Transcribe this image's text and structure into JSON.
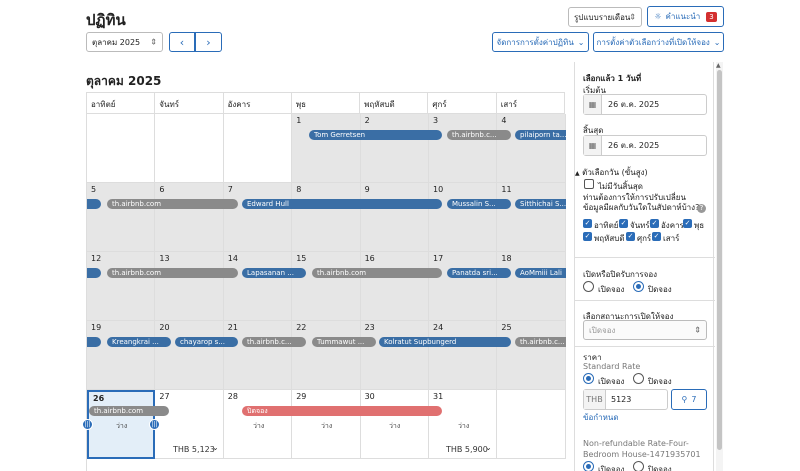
{
  "page_title": "ปฏิทิน",
  "header": {
    "view_select": "รูปแบบรายเดือน",
    "tips_label": "คำแนะนำ",
    "tips_count": "3",
    "month_select": "ตุลาคม 2025",
    "prev": "‹",
    "next": "›",
    "manage_settings": "จัดการการตั้งค่าปฏิทิน",
    "availability_settings": "การตั้งค่าตัวเลือกว่างที่เปิดให้จอง"
  },
  "calendar": {
    "month_title": "ตุลาคม 2025",
    "weekdays": [
      "อาทิตย์",
      "จันทร์",
      "อังคาร",
      "พุธ",
      "พฤหัสบดี",
      "ศุกร์",
      "เสาร์"
    ],
    "weeks": [
      {
        "days": [
          "",
          "",
          "",
          "1",
          "2",
          "3",
          "4"
        ]
      },
      {
        "days": [
          "5",
          "6",
          "7",
          "8",
          "9",
          "10",
          "11"
        ]
      },
      {
        "days": [
          "12",
          "13",
          "14",
          "15",
          "16",
          "17",
          "18"
        ]
      },
      {
        "days": [
          "19",
          "20",
          "21",
          "22",
          "23",
          "24",
          "25"
        ]
      },
      {
        "days": [
          "26",
          "27",
          "28",
          "29",
          "30",
          "31",
          ""
        ]
      }
    ],
    "reservations": {
      "tom": "Tom Gerretsen",
      "airbnb_w1": "th.airbnb.c...",
      "pilai": "pilaiporn ta...",
      "airbnb_w2": "th.airbnb.com",
      "edward": "Edward Hull",
      "mussalin": "Mussalin S...",
      "sitthichai": "Sitthichai S...",
      "airbnb_w3a": "th.airbnb.com",
      "lapasanan": "Lapasanan ...",
      "airbnb_w3b": "th.airbnb.com",
      "panatda": "Panatda sri...",
      "aomiii": "AoMmiii Lali",
      "kreangkrai": "Kreangkrai ...",
      "chayarop": "chayarop s...",
      "airbnb_w4a": "th.airbnb.c...",
      "tummawut": "Tummawut ...",
      "kolratut": "Kolratut Supbungerd",
      "airbnb_w4b": "th.airbnb.c...",
      "airbnb_w5": "th.airbnb.com",
      "blocked": "ปิดจอง"
    },
    "empty_label": "ว่าง",
    "price_week_a": "THB 5,123",
    "price_week_b": "THB 5,900"
  },
  "panel": {
    "selected_heading": "เลือกแล้ว 1 วันที่",
    "start_label": "เริ่มต้น",
    "start_value": "26 ต.ค. 2025",
    "end_label": "สิ้นสุด",
    "end_value": "26 ต.ค. 2025",
    "advanced_toggle": "ตัวเลือกวัน (ขั้นสูง)",
    "no_end_label": "ไม่มีวันสิ้นสุด",
    "recurring_question": "ท่านต้องการให้การปรับเปลี่ยนข้อมูลมีผลกับวันใดในสัปดาห์บ้าง?",
    "day_checks": [
      "อาทิตย์",
      "จันทร์",
      "อังคาร",
      "พุธ",
      "พฤหัสบดี",
      "ศุกร์",
      "เสาร์"
    ],
    "open_close_heading": "เปิดหรือปิดรับการจอง",
    "open_label": "เปิดจอง",
    "close_label": "ปิดจอง",
    "status_heading": "เลือกสถานะการเปิดให้จอง",
    "status_placeholder": "เปิดจอง",
    "price_heading": "ราคา",
    "standard_rate": "Standard Rate",
    "currency": "THB",
    "price_value": "5123",
    "guest_count": "7",
    "options_link": "ข้อกำหนด",
    "nonrefund_rate": "Non-refundable Rate-Four-Bedroom House-1471935701"
  },
  "colors": {
    "accent": "#2a6cb8",
    "booking": "#3a6ea5",
    "external": "#8a8a8a",
    "blocked": "#e07070",
    "badge": "#d32f2f"
  }
}
